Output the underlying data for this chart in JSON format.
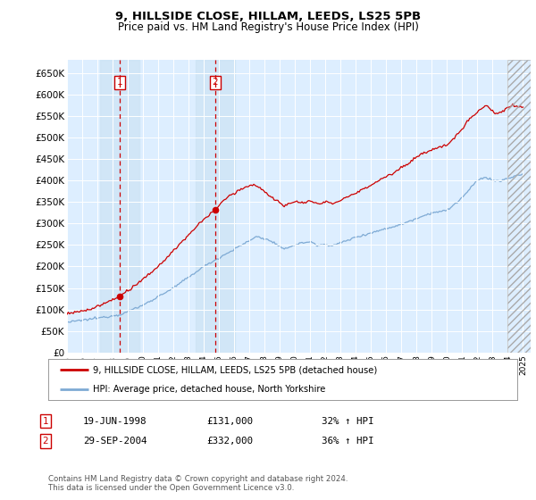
{
  "title1": "9, HILLSIDE CLOSE, HILLAM, LEEDS, LS25 5PB",
  "title2": "Price paid vs. HM Land Registry's House Price Index (HPI)",
  "ylabel_ticks": [
    "£0",
    "£50K",
    "£100K",
    "£150K",
    "£200K",
    "£250K",
    "£300K",
    "£350K",
    "£400K",
    "£450K",
    "£500K",
    "£550K",
    "£600K",
    "£650K"
  ],
  "ytick_values": [
    0,
    50000,
    100000,
    150000,
    200000,
    250000,
    300000,
    350000,
    400000,
    450000,
    500000,
    550000,
    600000,
    650000
  ],
  "xlim_start": 1995.0,
  "xlim_end": 2025.5,
  "ylim_min": 0,
  "ylim_max": 680000,
  "purchase1_date": 1998.46,
  "purchase1_price": 131000,
  "purchase2_date": 2004.74,
  "purchase2_price": 332000,
  "background_color": "#ffffff",
  "plot_bg_color": "#ddeeff",
  "grid_color": "#ccddee",
  "hpi_line_color": "#7eaad4",
  "price_line_color": "#cc0000",
  "vline_color": "#cc0000",
  "legend_label1": "9, HILLSIDE CLOSE, HILLAM, LEEDS, LS25 5PB (detached house)",
  "legend_label2": "HPI: Average price, detached house, North Yorkshire",
  "table_row1": [
    "1",
    "19-JUN-1998",
    "£131,000",
    "32% ↑ HPI"
  ],
  "table_row2": [
    "2",
    "29-SEP-2004",
    "£332,000",
    "36% ↑ HPI"
  ],
  "footnote": "Contains HM Land Registry data © Crown copyright and database right 2024.\nThis data is licensed under the Open Government Licence v3.0.",
  "xtick_years": [
    1995,
    1996,
    1997,
    1998,
    1999,
    2000,
    2001,
    2002,
    2003,
    2004,
    2005,
    2006,
    2007,
    2008,
    2009,
    2010,
    2011,
    2012,
    2013,
    2014,
    2015,
    2016,
    2017,
    2018,
    2019,
    2020,
    2021,
    2022,
    2023,
    2024,
    2025
  ]
}
